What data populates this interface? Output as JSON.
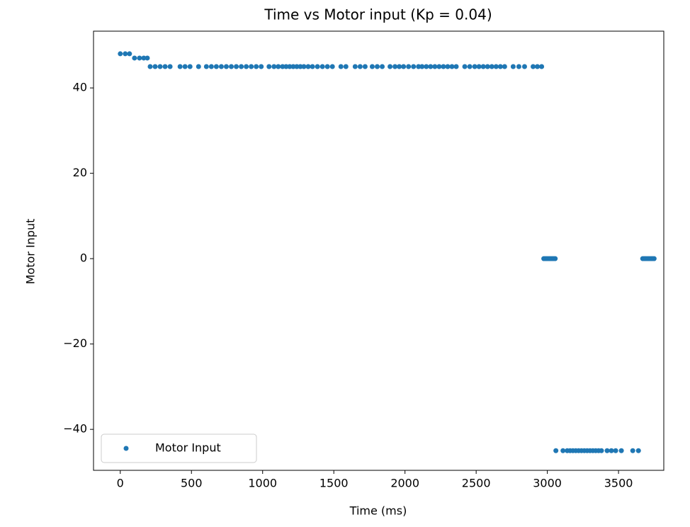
{
  "chart_data": {
    "type": "scatter",
    "title": "Time vs Motor input (Kp = 0.04)",
    "x_label": "Time (ms)",
    "y_label": "Motor Input",
    "xlim": [
      -188,
      3818
    ],
    "ylim": [
      -49.6,
      53.3
    ],
    "xticks": [
      0,
      500,
      1000,
      1500,
      2000,
      2500,
      3000,
      3500
    ],
    "yticks": [
      {
        "value": -40,
        "label": "−40"
      },
      {
        "value": -20,
        "label": "−20"
      },
      0,
      20,
      40
    ],
    "legend": "lower left",
    "series": [
      {
        "name": "Motor Input",
        "color": "#1f77b4",
        "x": [
          0,
          35,
          65,
          100,
          135,
          165,
          190,
          210,
          245,
          280,
          315,
          350,
          420,
          455,
          490,
          550,
          605,
          640,
          675,
          710,
          745,
          780,
          815,
          850,
          885,
          920,
          955,
          990,
          1045,
          1080,
          1110,
          1140,
          1165,
          1190,
          1215,
          1240,
          1265,
          1290,
          1320,
          1350,
          1385,
          1420,
          1455,
          1490,
          1550,
          1585,
          1650,
          1685,
          1720,
          1770,
          1805,
          1840,
          1895,
          1930,
          1960,
          1990,
          2025,
          2060,
          2095,
          2120,
          2150,
          2180,
          2210,
          2240,
          2270,
          2300,
          2330,
          2360,
          2420,
          2455,
          2490,
          2520,
          2550,
          2580,
          2610,
          2640,
          2670,
          2700,
          2760,
          2800,
          2840,
          2900,
          2930,
          2960,
          2975,
          2985,
          2995,
          3005,
          3015,
          3025,
          3035,
          3045,
          3055,
          3060,
          3110,
          3140,
          3160,
          3180,
          3200,
          3220,
          3240,
          3260,
          3280,
          3300,
          3320,
          3340,
          3360,
          3380,
          3420,
          3450,
          3480,
          3520,
          3600,
          3640,
          3670,
          3680,
          3690,
          3700,
          3710,
          3720,
          3730,
          3740,
          3750
        ],
        "values": [
          48,
          48,
          48,
          47,
          47,
          47,
          47,
          45,
          45,
          45,
          45,
          45,
          45,
          45,
          45,
          45,
          45,
          45,
          45,
          45,
          45,
          45,
          45,
          45,
          45,
          45,
          45,
          45,
          45,
          45,
          45,
          45,
          45,
          45,
          45,
          45,
          45,
          45,
          45,
          45,
          45,
          45,
          45,
          45,
          45,
          45,
          45,
          45,
          45,
          45,
          45,
          45,
          45,
          45,
          45,
          45,
          45,
          45,
          45,
          45,
          45,
          45,
          45,
          45,
          45,
          45,
          45,
          45,
          45,
          45,
          45,
          45,
          45,
          45,
          45,
          45,
          45,
          45,
          45,
          45,
          45,
          45,
          45,
          45,
          0,
          0,
          0,
          0,
          0,
          0,
          0,
          0,
          0,
          -45,
          -45,
          -45,
          -45,
          -45,
          -45,
          -45,
          -45,
          -45,
          -45,
          -45,
          -45,
          -45,
          -45,
          -45,
          -45,
          -45,
          -45,
          -45,
          -45,
          -45,
          0,
          0,
          0,
          0,
          0,
          0,
          0,
          0,
          0
        ]
      }
    ]
  }
}
